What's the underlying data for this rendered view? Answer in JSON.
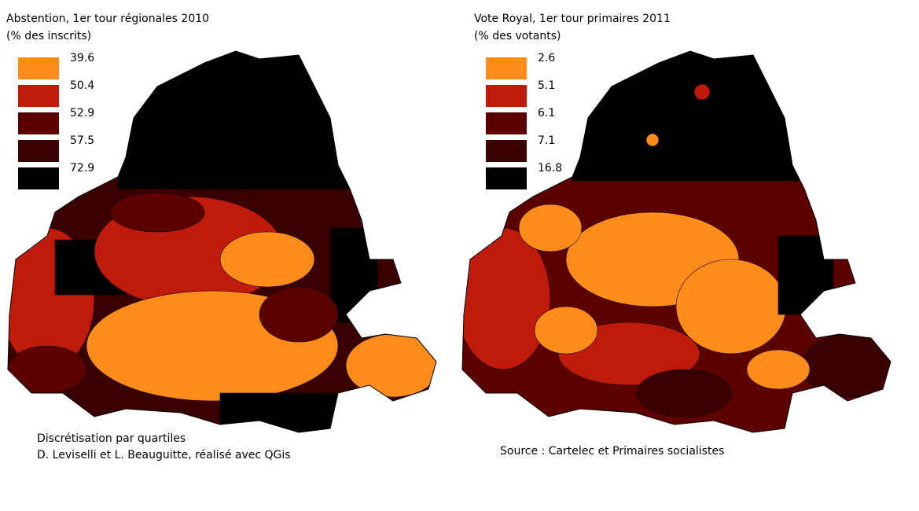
{
  "maps": [
    {
      "title": "Abstention, 1er tour régionales 2010",
      "subtitle": "(% des inscrits)",
      "legend": [
        {
          "value": 39.6,
          "color": "#ff8c1a"
        },
        {
          "value": 50.4,
          "color": "#c01a0c"
        },
        {
          "value": 52.9,
          "color": "#5c0000"
        },
        {
          "value": 57.5,
          "color": "#3a0000"
        },
        {
          "value": 72.9,
          "color": "#000000"
        }
      ],
      "notes": [
        "Discrétisation par quartiles",
        "D. Leviselli et L. Beauguitte, réalisé avec QGis"
      ]
    },
    {
      "title": "Vote Royal, 1er tour primaires 2011",
      "subtitle": "(% des votants)",
      "legend": [
        {
          "value": 2.6,
          "color": "#ff8c1a"
        },
        {
          "value": 5.1,
          "color": "#c01a0c"
        },
        {
          "value": 6.1,
          "color": "#5c0000"
        },
        {
          "value": 7.1,
          "color": "#3a0000"
        },
        {
          "value": 16.8,
          "color": "#000000"
        }
      ],
      "notes": [
        "Source : Cartelec et Primaires socialistes"
      ]
    }
  ]
}
